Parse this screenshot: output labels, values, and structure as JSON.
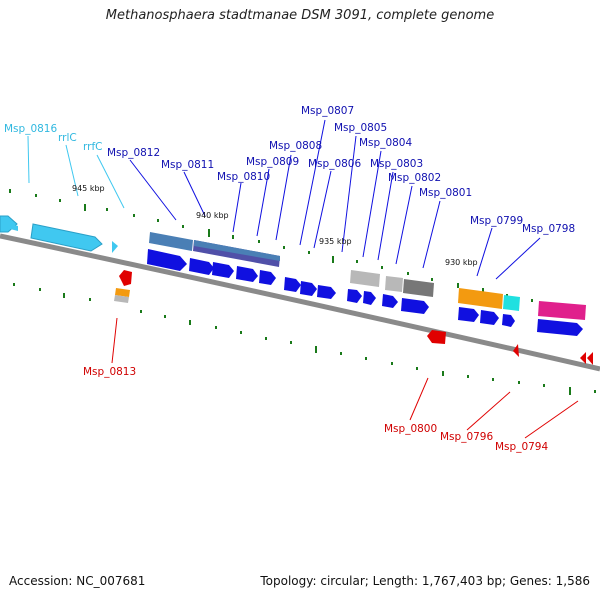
{
  "title": "Methanosphaera stadtmanae DSM 3091, complete genome",
  "accession": "Accession: NC_007681",
  "summary": "Topology: circular; Length: 1,767,403 bp; Genes: 1,586",
  "scale_labels": [
    "945 kbp",
    "940 kbp",
    "935 kbp",
    "930 kbp"
  ],
  "labels_cyan": [
    "Msp_0816",
    "rrlC",
    "rrfC"
  ],
  "labels_blue": [
    "Msp_0812",
    "Msp_0811",
    "Msp_0810",
    "Msp_0809",
    "Msp_0808",
    "Msp_0807",
    "Msp_0806",
    "Msp_0805",
    "Msp_0804",
    "Msp_0803",
    "Msp_0802",
    "Msp_0801",
    "Msp_0799",
    "Msp_0798"
  ],
  "labels_red": [
    "Msp_0813",
    "Msp_0800",
    "Msp_0796",
    "Msp_0794"
  ],
  "colors": {
    "forward_gene": "#1010e0",
    "rna_gene": "#40c8f0",
    "reverse_gene": "#e00000",
    "cog_blue": "#4a7fb5",
    "cog_purple": "#5050a8",
    "cog_gray": "#b8b8b8",
    "cog_darkgray": "#777777",
    "cog_orange": "#f39a10",
    "cog_cyan": "#20e0e0",
    "cog_magenta": "#e0208c",
    "backbone": "#808080",
    "gc_tick": "#1a7a1a"
  }
}
